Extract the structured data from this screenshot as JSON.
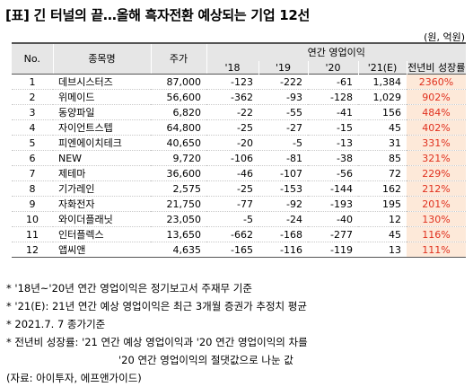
{
  "title": "[표] 긴 터널의 끝…올해 흑자전환 예상되는 기업 12선",
  "unit": "(원, 억원)",
  "headers": {
    "no": "No.",
    "name": "종목명",
    "price": "주가",
    "group": "연간 영업이익",
    "y18": "'18",
    "y19": "'19",
    "y20": "'20",
    "y21": "'21(E)",
    "growth": "전년비 성장률"
  },
  "rows": [
    {
      "no": "1",
      "name": "데브시스터즈",
      "price": "87,000",
      "y18": "-123",
      "y19": "-222",
      "y20": "-61",
      "y21": "1,384",
      "growth": "2360%"
    },
    {
      "no": "2",
      "name": "위메이드",
      "price": "56,600",
      "y18": "-362",
      "y19": "-93",
      "y20": "-128",
      "y21": "1,029",
      "growth": "902%"
    },
    {
      "no": "3",
      "name": "동양파일",
      "price": "6,820",
      "y18": "-22",
      "y19": "-55",
      "y20": "-41",
      "y21": "156",
      "growth": "484%"
    },
    {
      "no": "4",
      "name": "자이언트스텝",
      "price": "64,800",
      "y18": "-25",
      "y19": "-27",
      "y20": "-15",
      "y21": "45",
      "growth": "402%"
    },
    {
      "no": "5",
      "name": "피엔에이치테크",
      "price": "40,650",
      "y18": "-20",
      "y19": "-5",
      "y20": "-13",
      "y21": "31",
      "growth": "331%"
    },
    {
      "no": "6",
      "name": "NEW",
      "price": "9,720",
      "y18": "-106",
      "y19": "-81",
      "y20": "-38",
      "y21": "85",
      "growth": "321%"
    },
    {
      "no": "7",
      "name": "제테마",
      "price": "36,600",
      "y18": "-46",
      "y19": "-107",
      "y20": "-56",
      "y21": "72",
      "growth": "229%"
    },
    {
      "no": "8",
      "name": "기가레인",
      "price": "2,575",
      "y18": "-25",
      "y19": "-153",
      "y20": "-144",
      "y21": "162",
      "growth": "212%"
    },
    {
      "no": "9",
      "name": "자화전자",
      "price": "21,750",
      "y18": "-77",
      "y19": "-92",
      "y20": "-193",
      "y21": "195",
      "growth": "201%"
    },
    {
      "no": "10",
      "name": "와이더플래닛",
      "price": "23,050",
      "y18": "-5",
      "y19": "-24",
      "y20": "-40",
      "y21": "12",
      "growth": "130%"
    },
    {
      "no": "11",
      "name": "인터플렉스",
      "price": "13,650",
      "y18": "-662",
      "y19": "-168",
      "y20": "-277",
      "y21": "45",
      "growth": "116%"
    },
    {
      "no": "12",
      "name": "앱씨앤",
      "price": "4,635",
      "y18": "-165",
      "y19": "-116",
      "y20": "-119",
      "y21": "13",
      "growth": "111%"
    }
  ],
  "notes": [
    "* '18년~'20년 연간 영업이익은 정기보고서 주재무 기준",
    "* '21(E): 21년 연간 예상 영업이익은 최근 3개월 증권가 추정치 평균",
    "* 2021.7. 7 종가기준",
    "* 전년비 성장률: '21 연간 예상 영업이익과 '20 연간 영업이익의 차를",
    "'20 연간 영업이익의 절댓값으로 나눈 값",
    "(자료: 아이투자, 에프앤가이드)"
  ],
  "colors": {
    "header_bg": "#e6e6e6",
    "growth_bg": "#fde9d9",
    "growth_text": "#e0301e"
  }
}
